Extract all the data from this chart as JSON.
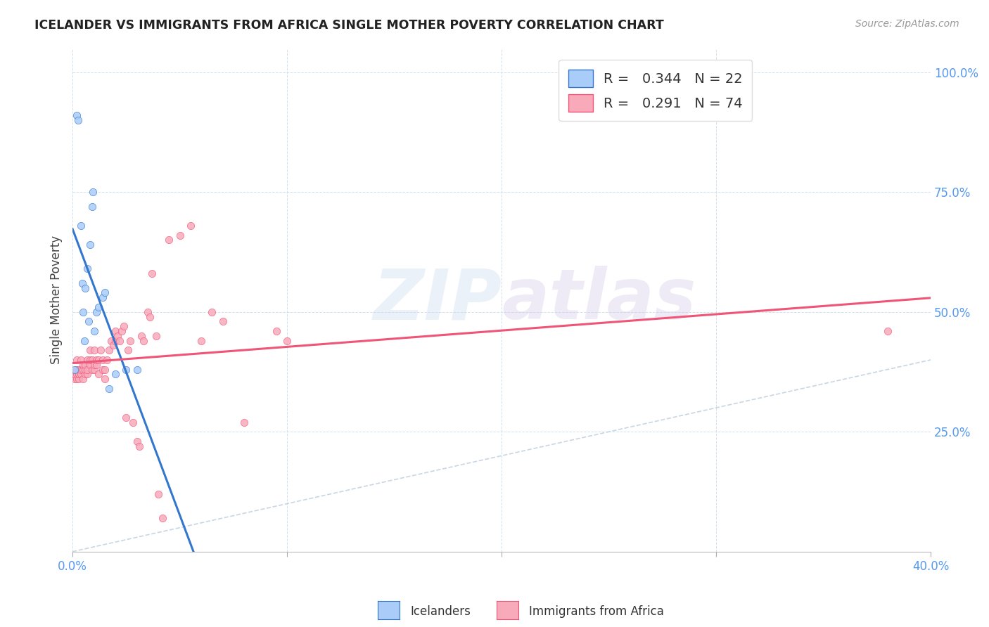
{
  "title": "ICELANDER VS IMMIGRANTS FROM AFRICA SINGLE MOTHER POVERTY CORRELATION CHART",
  "source": "Source: ZipAtlas.com",
  "ylabel": "Single Mother Poverty",
  "y_ticks": [
    0.0,
    0.25,
    0.5,
    0.75,
    1.0
  ],
  "y_tick_labels": [
    "",
    "25.0%",
    "50.0%",
    "75.0%",
    "100.0%"
  ],
  "x_lim": [
    0.0,
    0.4
  ],
  "y_lim": [
    0.0,
    1.05
  ],
  "legend_r1": "0.344",
  "legend_n1": "22",
  "legend_r2": "0.291",
  "legend_n2": "74",
  "icelander_color": "#aaccf8",
  "africa_color": "#f8aabb",
  "icelander_line_color": "#3377cc",
  "africa_line_color": "#ee5577",
  "diagonal_color": "#bbccdd",
  "watermark_left": "ZIP",
  "watermark_right": "atlas",
  "icelander_x": [
    0.001,
    0.002,
    0.0025,
    0.004,
    0.0045,
    0.005,
    0.0055,
    0.006,
    0.007,
    0.0075,
    0.008,
    0.009,
    0.0095,
    0.01,
    0.011,
    0.012,
    0.014,
    0.015,
    0.017,
    0.02,
    0.025,
    0.03
  ],
  "icelander_y": [
    0.38,
    0.91,
    0.9,
    0.68,
    0.56,
    0.5,
    0.44,
    0.55,
    0.59,
    0.48,
    0.64,
    0.72,
    0.75,
    0.46,
    0.5,
    0.51,
    0.53,
    0.54,
    0.34,
    0.37,
    0.38,
    0.38
  ],
  "africa_x": [
    0.001,
    0.001,
    0.001,
    0.002,
    0.002,
    0.002,
    0.002,
    0.003,
    0.003,
    0.003,
    0.003,
    0.004,
    0.004,
    0.004,
    0.005,
    0.005,
    0.005,
    0.006,
    0.006,
    0.006,
    0.007,
    0.007,
    0.007,
    0.008,
    0.008,
    0.008,
    0.009,
    0.009,
    0.01,
    0.01,
    0.01,
    0.011,
    0.011,
    0.012,
    0.012,
    0.013,
    0.014,
    0.014,
    0.015,
    0.015,
    0.016,
    0.017,
    0.018,
    0.019,
    0.02,
    0.02,
    0.021,
    0.022,
    0.023,
    0.024,
    0.025,
    0.026,
    0.027,
    0.028,
    0.03,
    0.031,
    0.032,
    0.033,
    0.035,
    0.036,
    0.037,
    0.039,
    0.04,
    0.042,
    0.045,
    0.05,
    0.055,
    0.06,
    0.065,
    0.07,
    0.08,
    0.095,
    0.1,
    0.38
  ],
  "africa_y": [
    0.36,
    0.37,
    0.37,
    0.36,
    0.37,
    0.38,
    0.4,
    0.36,
    0.37,
    0.37,
    0.38,
    0.37,
    0.38,
    0.4,
    0.36,
    0.38,
    0.39,
    0.37,
    0.38,
    0.39,
    0.37,
    0.38,
    0.4,
    0.39,
    0.4,
    0.42,
    0.38,
    0.4,
    0.38,
    0.39,
    0.42,
    0.39,
    0.4,
    0.37,
    0.4,
    0.42,
    0.38,
    0.4,
    0.38,
    0.36,
    0.4,
    0.42,
    0.44,
    0.43,
    0.44,
    0.46,
    0.45,
    0.44,
    0.46,
    0.47,
    0.28,
    0.42,
    0.44,
    0.27,
    0.23,
    0.22,
    0.45,
    0.44,
    0.5,
    0.49,
    0.58,
    0.45,
    0.12,
    0.07,
    0.65,
    0.66,
    0.68,
    0.44,
    0.5,
    0.48,
    0.27,
    0.46,
    0.44,
    0.46
  ],
  "background_color": "#ffffff",
  "grid_color": "#ccddee",
  "tick_color": "#5599ee"
}
